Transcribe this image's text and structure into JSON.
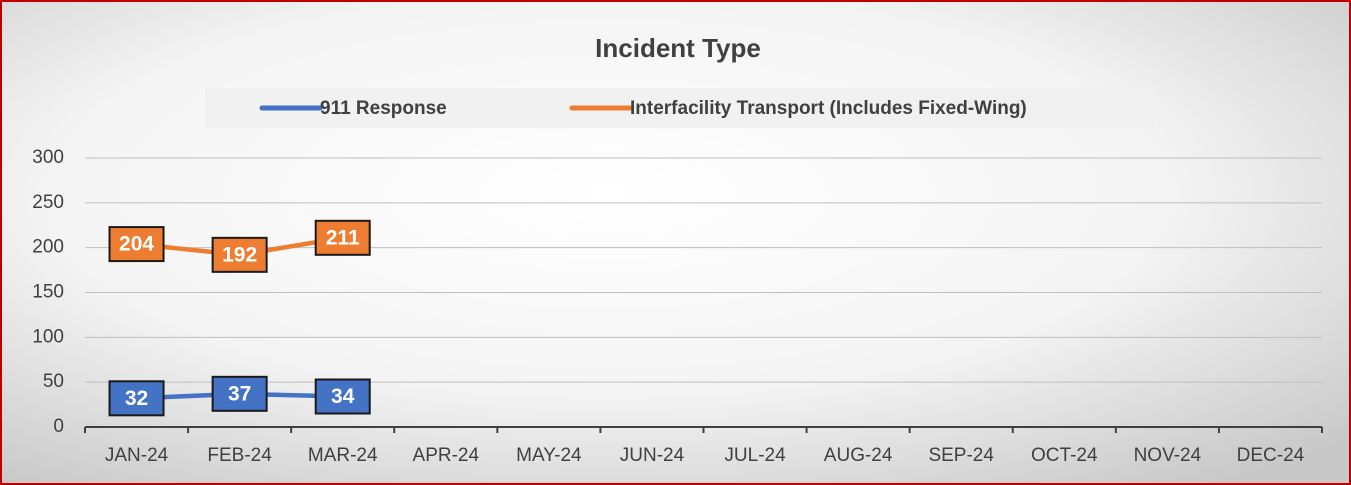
{
  "chart_data": {
    "type": "line",
    "title": "Incident Type",
    "categories": [
      "JAN-24",
      "FEB-24",
      "MAR-24",
      "APR-24",
      "MAY-24",
      "JUN-24",
      "JUL-24",
      "AUG-24",
      "SEP-24",
      "OCT-24",
      "NOV-24",
      "DEC-24"
    ],
    "series": [
      {
        "name": "911 Response",
        "color": "#4472c4",
        "values": [
          32,
          37,
          34,
          null,
          null,
          null,
          null,
          null,
          null,
          null,
          null,
          null
        ]
      },
      {
        "name": "Interfacility Transport (Includes Fixed-Wing)",
        "color": "#ed7d31",
        "values": [
          204,
          192,
          211,
          null,
          null,
          null,
          null,
          null,
          null,
          null,
          null,
          null
        ]
      }
    ],
    "ylim": [
      0,
      300
    ],
    "yticks": [
      0,
      50,
      100,
      150,
      200,
      250,
      300
    ],
    "grid": true,
    "legend": "top"
  }
}
